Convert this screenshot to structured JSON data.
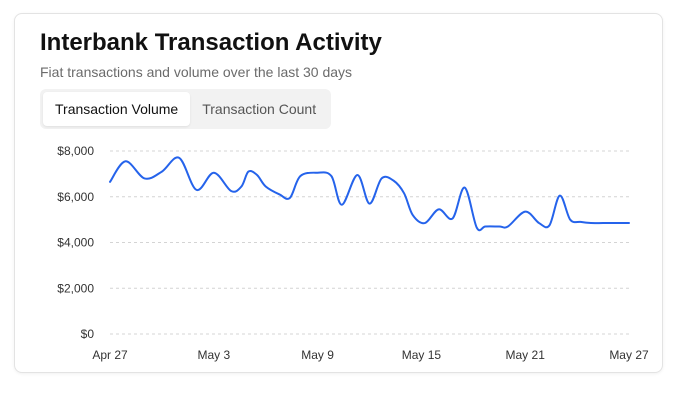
{
  "header": {
    "title": "Interbank Transaction Activity",
    "subtitle": "Fiat transactions and volume over the last 30 days"
  },
  "tabs": [
    {
      "label": "Transaction Volume",
      "active": true
    },
    {
      "label": "Transaction Count",
      "active": false
    }
  ],
  "colors": {
    "line": "#2563eb",
    "grid": "#d4d4d4",
    "text": "#333333"
  },
  "chart_data": {
    "type": "line",
    "title": "Transaction Volume",
    "xlabel": "",
    "ylabel": "",
    "grid": true,
    "ylim": [
      0,
      8000
    ],
    "xlim": [
      0,
      30
    ],
    "y_ticks": [
      {
        "value": 0,
        "label": "$0"
      },
      {
        "value": 2000,
        "label": "$2,000"
      },
      {
        "value": 4000,
        "label": "$4,000"
      },
      {
        "value": 6000,
        "label": "$6,000"
      },
      {
        "value": 8000,
        "label": "$8,000"
      }
    ],
    "x_ticks": [
      {
        "value": 0,
        "label": "Apr 27"
      },
      {
        "value": 6,
        "label": "May 3"
      },
      {
        "value": 12,
        "label": "May 9"
      },
      {
        "value": 18,
        "label": "May 15"
      },
      {
        "value": 24,
        "label": "May 21"
      },
      {
        "value": 30,
        "label": "May 27"
      }
    ],
    "series": [
      {
        "name": "Transaction Volume",
        "x": [
          0,
          0.9,
          2,
          3,
          4,
          5,
          6,
          7,
          7.6,
          8,
          8.5,
          9,
          9.8,
          10.4,
          11,
          12,
          12.8,
          13.4,
          14.3,
          15,
          15.7,
          16.4,
          17,
          17.5,
          18.2,
          19,
          19.8,
          20.5,
          21.2,
          21.7,
          22.5,
          23,
          24,
          24.8,
          25.4,
          26,
          26.6,
          27.2,
          27.8,
          28.5,
          29.2,
          30
        ],
        "values": [
          6650,
          7550,
          6800,
          7100,
          7700,
          6300,
          7050,
          6250,
          6450,
          7100,
          6950,
          6450,
          6100,
          5950,
          6900,
          7050,
          6900,
          5650,
          6950,
          5700,
          6800,
          6700,
          6150,
          5200,
          4850,
          5450,
          5050,
          6400,
          4650,
          4700,
          4700,
          4700,
          5350,
          4850,
          4750,
          6050,
          5000,
          4900,
          4850,
          4850,
          4850,
          4850
        ]
      }
    ]
  }
}
